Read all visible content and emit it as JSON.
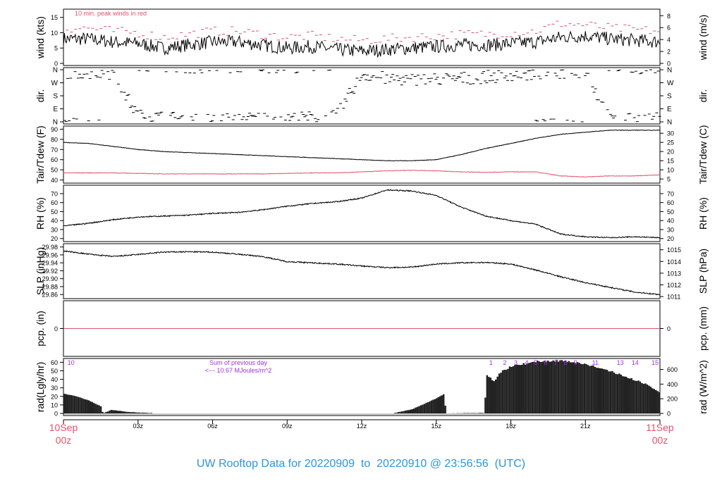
{
  "title": "UW Rooftop Data for 20220909  to  20220910 @ 23:56:56  (UTC)",
  "chart_data": [
    {
      "type": "line",
      "id": "wind",
      "ylabel": "wind (kts)",
      "ylabel_right": "wind (m/s)",
      "ylim": [
        0,
        17
      ],
      "yticks": [
        0,
        5,
        10,
        15
      ],
      "right_ticks": [
        0,
        2,
        4,
        6,
        8
      ],
      "right_factor": 1.944,
      "annotation": "10 min. peak winds in red",
      "x_hours": [
        0,
        1,
        2,
        3,
        4,
        5,
        6,
        7,
        8,
        9,
        10,
        11,
        12,
        13,
        14,
        15,
        16,
        17,
        18,
        19,
        20,
        21,
        22,
        23,
        24
      ],
      "series": [
        {
          "values": [
            8,
            8,
            7,
            6.5,
            5,
            6,
            7,
            7,
            6,
            5,
            5.5,
            4.5,
            4,
            4.5,
            5,
            5.5,
            6,
            6,
            6.5,
            7,
            8.5,
            9,
            8,
            7.5,
            7
          ],
          "color": "#000000"
        },
        {
          "values": [
            11,
            11,
            10,
            9.5,
            8,
            9,
            10,
            10,
            9,
            8,
            8.5,
            7.5,
            7,
            7.5,
            8,
            8.5,
            9,
            9,
            9.5,
            10,
            12.5,
            12,
            11,
            10.5,
            10
          ],
          "color": "#df536b"
        }
      ]
    },
    {
      "type": "scatter",
      "id": "dir",
      "ylabel": "dir.",
      "ylabel_right": "dir.",
      "ylim": [
        0,
        360
      ],
      "ytick_labels": [
        "N",
        "E",
        "S",
        "W",
        "N"
      ],
      "yticks": [
        0,
        90,
        180,
        270,
        360
      ],
      "x_hours": [
        0,
        1,
        2,
        3,
        4,
        5,
        6,
        7,
        8,
        9,
        10,
        11,
        12,
        13,
        14,
        15,
        16,
        17,
        18,
        19,
        20,
        21,
        22,
        23,
        24
      ],
      "values": [
        345,
        340,
        335,
        40,
        30,
        20,
        15,
        20,
        25,
        20,
        30,
        40,
        330,
        300,
        290,
        295,
        300,
        310,
        320,
        330,
        340,
        350,
        10,
        15,
        20
      ]
    },
    {
      "type": "line",
      "id": "temp",
      "ylabel": "Tair/Tdew (F)",
      "ylabel_right": "Tair/Tdew (C)",
      "ylim": [
        39,
        91
      ],
      "yticks": [
        40,
        50,
        60,
        70,
        80,
        90
      ],
      "right_ticks": [
        5,
        10,
        15,
        20,
        25,
        30
      ],
      "x_hours": [
        0,
        1,
        2,
        3,
        4,
        5,
        6,
        7,
        8,
        9,
        10,
        11,
        12,
        13,
        14,
        15,
        16,
        17,
        18,
        19,
        20,
        21,
        22,
        23,
        24
      ],
      "series": [
        {
          "name": "Tair",
          "values": [
            77,
            76,
            73,
            70,
            68,
            67,
            66,
            65,
            64,
            63,
            62,
            61,
            60,
            59,
            59,
            60,
            65,
            71,
            76,
            81,
            85,
            87,
            89,
            89,
            89
          ],
          "color": "#000000"
        },
        {
          "name": "Tdew",
          "values": [
            47,
            47,
            47,
            46.5,
            46,
            46,
            46,
            46,
            46,
            46.5,
            47,
            47,
            48,
            49,
            49.5,
            49,
            48,
            47.5,
            48,
            48,
            44,
            43,
            44,
            44,
            45
          ],
          "color": "#df536b"
        }
      ]
    },
    {
      "type": "line",
      "id": "rh",
      "ylabel": "RH (%)",
      "ylabel_right": "RH (%)",
      "ylim": [
        19,
        77
      ],
      "yticks": [
        20,
        30,
        40,
        50,
        60,
        70
      ],
      "right_ticks": [
        20,
        30,
        40,
        50,
        60,
        70
      ],
      "x_hours": [
        0,
        1,
        2,
        3,
        4,
        5,
        6,
        7,
        8,
        9,
        10,
        11,
        12,
        13,
        14,
        15,
        16,
        17,
        18,
        19,
        20,
        21,
        22,
        23,
        24
      ],
      "series": [
        {
          "values": [
            34,
            37,
            41,
            44,
            45,
            46,
            48,
            49,
            52,
            56,
            59,
            61,
            65,
            74,
            73,
            68,
            55,
            45,
            40,
            36,
            25,
            22,
            21,
            22,
            21
          ],
          "color": "#000000"
        }
      ]
    },
    {
      "type": "line",
      "id": "slp",
      "ylabel": "SLP (inHg)",
      "ylabel_right": "SLP (hPa)",
      "ylim": [
        29.855,
        29.983
      ],
      "yticks": [
        29.86,
        29.88,
        29.9,
        29.92,
        29.94,
        29.96,
        29.98
      ],
      "right_ticks": [
        1011,
        1012,
        1013,
        1014,
        1015
      ],
      "x_hours": [
        0,
        1,
        2,
        3,
        4,
        5,
        6,
        7,
        8,
        9,
        10,
        11,
        12,
        13,
        14,
        15,
        16,
        17,
        18,
        19,
        20,
        21,
        22,
        23,
        24
      ],
      "series": [
        {
          "values": [
            29.97,
            29.962,
            29.956,
            29.961,
            29.967,
            29.968,
            29.967,
            29.962,
            29.956,
            29.943,
            29.94,
            29.937,
            29.932,
            29.928,
            29.929,
            29.937,
            29.94,
            29.941,
            29.937,
            29.922,
            29.905,
            29.89,
            29.878,
            29.866,
            29.86
          ],
          "color": "#000000"
        }
      ]
    },
    {
      "type": "line",
      "id": "pcp",
      "ylabel": "pcp. (in)",
      "ylabel_right": "pcp. (mm)",
      "ylim": [
        -1,
        1
      ],
      "yticks": [
        0
      ],
      "right_ticks": [
        0
      ],
      "x_hours": [
        0,
        24
      ],
      "series": [
        {
          "values": [
            0,
            0
          ],
          "color": "#df536b"
        }
      ]
    },
    {
      "type": "bar",
      "id": "rad",
      "ylabel": "rad(Lgly/hr)",
      "ylabel_right": "rad (W/m^2)",
      "ylim": [
        0,
        62
      ],
      "yticks": [
        0,
        10,
        20,
        30,
        40,
        50,
        60
      ],
      "right_ticks": [
        0,
        200,
        400,
        600
      ],
      "annotation": "Sum of previous day",
      "annotation2": "<--- 10.67 MJoules/m^2",
      "x_hours": [
        0,
        0.5,
        1,
        1.5,
        1.55,
        1.9,
        2.5,
        3,
        3.5,
        3.6,
        13.2,
        14,
        15,
        15.3,
        15.35,
        16.5,
        16.9,
        17.0,
        17.3,
        17.6,
        18,
        18.5,
        19,
        20,
        21,
        22,
        23,
        23.5,
        24
      ],
      "values": [
        23,
        20,
        15,
        8,
        0,
        4,
        2,
        1,
        0.5,
        0,
        0,
        5,
        18,
        23,
        0,
        0.5,
        0.5,
        46,
        38,
        50,
        55,
        58,
        61,
        62,
        58,
        49,
        39,
        33,
        24
      ],
      "markers": [
        {
          "label": "10",
          "x": 0.3
        },
        {
          "label": "1",
          "x": 17.2
        },
        {
          "label": "2",
          "x": 17.76
        },
        {
          "label": "3",
          "x": 18.2
        },
        {
          "label": "4",
          "x": 18.64
        },
        {
          "label": "5",
          "x": 19.0
        },
        {
          "label": "6",
          "x": 19.4
        },
        {
          "label": "7",
          "x": 19.8
        },
        {
          "label": "8",
          "x": 20.2
        },
        {
          "label": "9",
          "x": 20.6
        },
        {
          "label": "11",
          "x": 21.4
        },
        {
          "label": "13",
          "x": 22.4
        },
        {
          "label": "14",
          "x": 23.0
        },
        {
          "label": "15",
          "x": 23.8
        }
      ]
    }
  ],
  "x_axis": {
    "start_label": [
      "10Sep",
      "00z"
    ],
    "end_label": [
      "11Sep",
      "00z"
    ],
    "ticks": [
      {
        "h": 3,
        "label": "03z"
      },
      {
        "h": 6,
        "label": "06z"
      },
      {
        "h": 9,
        "label": "09z"
      },
      {
        "h": 12,
        "label": "12z"
      },
      {
        "h": 15,
        "label": "15z"
      },
      {
        "h": 18,
        "label": "18z"
      },
      {
        "h": 21,
        "label": "21z"
      }
    ],
    "date_color": "#df536b"
  },
  "colors": {
    "annotation_red": "#df536b",
    "marker_purple": "#a030f0",
    "title_blue": "#2b95e0"
  }
}
